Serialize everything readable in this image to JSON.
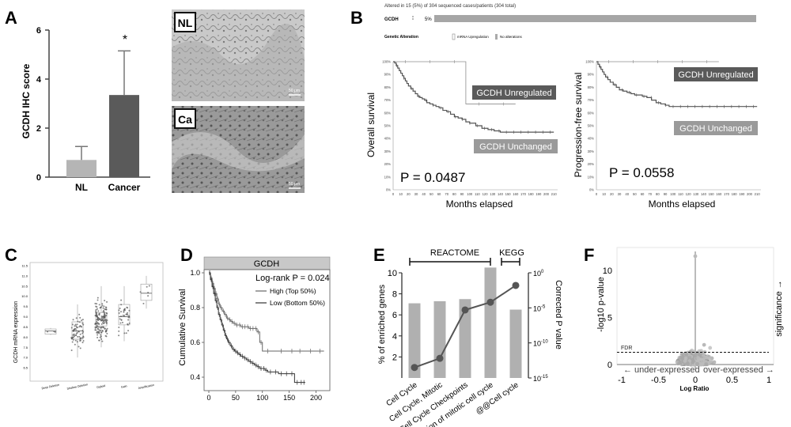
{
  "panels": {
    "A": {
      "letter": "A",
      "ylabel": "GCDH IHC score",
      "image_labels": [
        "NL",
        "Ca"
      ],
      "scale_bar": "50 μm"
    },
    "B": {
      "letter": "B",
      "header": "Altered in 15 (5%) of 304 sequenced cases/patients (304 total)",
      "gene": "GCDH",
      "gene_pct": "5%",
      "legend_title": "Genetic Alteration",
      "legend_items": [
        "mRNA Upregulation",
        "No alterations"
      ],
      "os_ylabel": "Overall survival",
      "pfs_ylabel": "Progression-free survival",
      "xlabel": "Months elapsed",
      "p_os": "P = 0.0487",
      "p_pfs": "P = 0.0558",
      "label_up": "GCDH Unregulated",
      "label_unch": "GCDH Unchanged"
    },
    "C": {
      "letter": "C",
      "ylabel": "GCDH mRNA expression"
    },
    "D": {
      "letter": "D",
      "strip": "GCDH",
      "logrank": "Log-rank P = 0.024",
      "ylabel": "Cumulative Survival"
    },
    "E": {
      "letter": "E",
      "group1": "REACTOME",
      "group2": "KEGG",
      "ylabel_left": "% of enriched genes",
      "ylabel_right": "Corrected P value"
    },
    "F": {
      "letter": "F",
      "ylabel": "-log10 p-value",
      "xlabel": "Log Ratio",
      "fdr": "FDR",
      "under": "← under-expressed",
      "over": "over-expressed →",
      "significance": "significance →"
    }
  },
  "chart_data": [
    {
      "id": "A",
      "type": "bar",
      "categories": [
        "NL",
        "Cancer"
      ],
      "values": [
        0.7,
        3.35
      ],
      "error": [
        0.55,
        1.8
      ],
      "ylim": [
        0,
        6
      ],
      "yticks": [
        0,
        2,
        4,
        6
      ],
      "annotation": "*",
      "colors": [
        "#b5b5b5",
        "#5a5a5a"
      ]
    },
    {
      "id": "B-OS",
      "type": "line",
      "yticks": [
        "0%",
        "10%",
        "20%",
        "30%",
        "40%",
        "50%",
        "60%",
        "70%",
        "80%",
        "90%",
        "100%"
      ],
      "xticks": [
        0,
        10,
        20,
        30,
        40,
        50,
        60,
        70,
        80,
        90,
        100,
        110,
        120,
        130,
        140,
        150,
        160,
        170,
        180,
        190,
        200,
        210
      ],
      "ylim": [
        0,
        100
      ],
      "xlim": [
        0,
        215
      ],
      "series": [
        {
          "name": "GCDH Unregulated",
          "x": [
            0,
            95,
            95,
            160
          ],
          "y": [
            100,
            100,
            67,
            67
          ],
          "color": "#8c8c8c"
        },
        {
          "name": "GCDH Unchanged",
          "x": [
            0,
            2,
            4,
            6,
            8,
            10,
            12,
            14,
            16,
            18,
            20,
            23,
            26,
            29,
            32,
            35,
            38,
            41,
            44,
            48,
            52,
            56,
            60,
            65,
            70,
            75,
            80,
            85,
            90,
            95,
            100,
            108,
            116,
            124,
            132,
            140,
            160,
            190,
            210
          ],
          "y": [
            100,
            99,
            97,
            95,
            93,
            91,
            89,
            87,
            85,
            83,
            81,
            79,
            77,
            75,
            73,
            72,
            71,
            70,
            68,
            67,
            66,
            65,
            64,
            62,
            61,
            59,
            57,
            56,
            55,
            53,
            52,
            50,
            48,
            47,
            46,
            45,
            45,
            45,
            45
          ],
          "color": "#555"
        }
      ]
    },
    {
      "id": "B-PFS",
      "type": "line",
      "yticks": [
        "0%",
        "10%",
        "20%",
        "30%",
        "40%",
        "50%",
        "60%",
        "70%",
        "80%",
        "90%",
        "100%"
      ],
      "xticks": [
        0,
        10,
        20,
        30,
        40,
        50,
        60,
        70,
        80,
        90,
        100,
        110,
        120,
        130,
        140,
        150,
        160,
        170,
        180,
        190,
        200,
        210
      ],
      "ylim": [
        0,
        100
      ],
      "xlim": [
        0,
        215
      ],
      "series": [
        {
          "name": "GCDH Unregulated",
          "x": [
            0,
            160
          ],
          "y": [
            100,
            100
          ],
          "color": "#8c8c8c"
        },
        {
          "name": "GCDH Unchanged",
          "x": [
            0,
            2,
            4,
            6,
            8,
            10,
            12,
            15,
            18,
            22,
            26,
            30,
            35,
            40,
            45,
            50,
            55,
            60,
            66,
            72,
            78,
            84,
            90,
            95,
            100,
            110,
            130,
            160,
            210
          ],
          "y": [
            100,
            98,
            96,
            94,
            92,
            90,
            88,
            86,
            84,
            82,
            80,
            78,
            77,
            76,
            75,
            74,
            74,
            73,
            72,
            70,
            68,
            67,
            66,
            65,
            65,
            65,
            65,
            65,
            65
          ],
          "color": "#555"
        }
      ]
    },
    {
      "id": "C",
      "type": "scatter",
      "categories": [
        "Deep Deletion",
        "Shallow Deletion",
        "Diploid",
        "Gain",
        "Amplification"
      ],
      "ylim": [
        6,
        11.5
      ],
      "yticks": [
        6.5,
        7.0,
        7.5,
        8.0,
        8.5,
        9.0,
        9.5,
        10.0,
        10.5,
        11.0,
        11.5
      ],
      "box": [
        {
          "q1": 8.15,
          "median": 8.3,
          "q3": 8.4,
          "min": 8.1,
          "max": 8.45
        },
        {
          "q1": 7.9,
          "median": 8.3,
          "q3": 8.75,
          "min": 7.0,
          "max": 9.6
        },
        {
          "q1": 8.55,
          "median": 8.85,
          "q3": 9.2,
          "min": 7.5,
          "max": 10.5
        },
        {
          "q1": 8.6,
          "median": 9.0,
          "q3": 9.6,
          "min": 7.8,
          "max": 10.5
        },
        {
          "q1": 9.8,
          "median": 10.15,
          "q3": 10.6,
          "min": 9.4,
          "max": 11.0
        }
      ],
      "n_points": [
        3,
        70,
        150,
        40,
        6
      ]
    },
    {
      "id": "D",
      "type": "line",
      "xlim": [
        0,
        220
      ],
      "ylim": [
        0.35,
        1.0
      ],
      "xticks": [
        0,
        50,
        100,
        150,
        200
      ],
      "yticks": [
        0.4,
        0.6,
        0.8,
        1.0
      ],
      "series": [
        {
          "name": "High (Top 50%)",
          "x": [
            0,
            3,
            6,
            9,
            12,
            15,
            18,
            21,
            25,
            29,
            33,
            37,
            41,
            45,
            50,
            55,
            60,
            65,
            70,
            75,
            80,
            85,
            90,
            95,
            100,
            120,
            150,
            160,
            180,
            200,
            215
          ],
          "y": [
            1,
            0.97,
            0.94,
            0.91,
            0.88,
            0.85,
            0.82,
            0.8,
            0.78,
            0.76,
            0.74,
            0.73,
            0.72,
            0.71,
            0.7,
            0.7,
            0.69,
            0.69,
            0.69,
            0.68,
            0.68,
            0.68,
            0.66,
            0.6,
            0.55,
            0.55,
            0.55,
            0.55,
            0.55,
            0.55,
            0.55
          ],
          "color": "#666"
        },
        {
          "name": "Low (Bottom 50%)",
          "x": [
            0,
            3,
            6,
            9,
            12,
            15,
            18,
            21,
            24,
            27,
            30,
            33,
            36,
            40,
            44,
            48,
            52,
            56,
            60,
            65,
            70,
            75,
            80,
            85,
            90,
            95,
            100,
            105,
            110,
            120,
            130,
            140,
            150,
            160,
            170,
            175,
            180
          ],
          "y": [
            1,
            0.96,
            0.92,
            0.88,
            0.84,
            0.8,
            0.76,
            0.73,
            0.7,
            0.67,
            0.64,
            0.62,
            0.6,
            0.58,
            0.56,
            0.55,
            0.54,
            0.53,
            0.52,
            0.51,
            0.5,
            0.49,
            0.48,
            0.47,
            0.46,
            0.45,
            0.45,
            0.44,
            0.43,
            0.43,
            0.42,
            0.42,
            0.42,
            0.37,
            0.37,
            0.37,
            0.37
          ],
          "color": "#333"
        }
      ]
    },
    {
      "id": "E",
      "type": "bar",
      "categories": [
        "Cell Cycle",
        "Cell Cycle, Mitotic",
        "Cell Cycle Checkpoints",
        "Regulation of mitotic cell cycle",
        "@@Cell cycle"
      ],
      "series": [
        {
          "name": "% of enriched genes",
          "values": [
            7.1,
            7.3,
            7.5,
            10.5,
            6.5
          ],
          "color": "#b0b0b0"
        },
        {
          "name": "Corrected P value",
          "values": [
            -13.5,
            -12.2,
            -5.3,
            -4.2,
            -1.8
          ],
          "color": "#555",
          "axis": "right"
        }
      ],
      "ylim_left": [
        0,
        10
      ],
      "yticks_left": [
        2,
        4,
        6,
        8,
        10
      ],
      "ylim_right_log10": [
        -15,
        0
      ],
      "yticks_right": [
        "10^0",
        "10^-5",
        "10^-10",
        "10^-15"
      ],
      "groups": [
        {
          "name": "REACTOME",
          "categories": [
            0,
            1,
            2,
            3
          ]
        },
        {
          "name": "KEGG",
          "categories": [
            4
          ]
        }
      ]
    },
    {
      "id": "F",
      "type": "scatter",
      "xlim": [
        -1,
        1
      ],
      "ylim": [
        0,
        12
      ],
      "xticks": [
        -1,
        -0.5,
        0,
        0.5,
        1
      ],
      "yticks": [
        0,
        5,
        10
      ],
      "fdr_line": 1.3,
      "highlight": {
        "x": 0.0,
        "y": 11.5
      }
    }
  ]
}
